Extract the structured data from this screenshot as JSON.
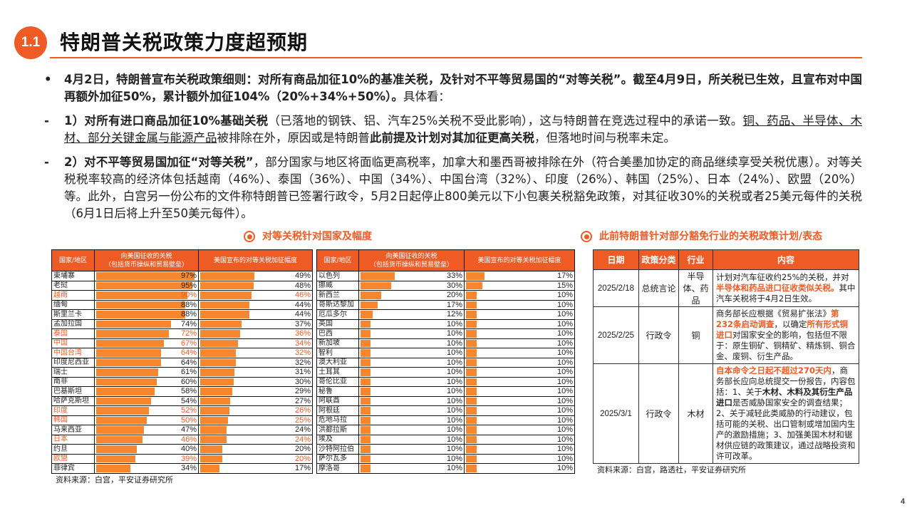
{
  "header": {
    "badge": "1.1",
    "title": "特朗普关税政策力度超预期"
  },
  "paragraphs": [
    {
      "marker": "•",
      "segments": [
        {
          "t": "4月2日，特朗普宣布关税政策细则：对所有商品加征10%的基准关税，及针对不平等贸易国的“对等关税”。截至4月9日，所关税已生效，且宣布对中国再额外加征50%，累计额外加征104%（20%+34%+50%）。",
          "s": "b"
        },
        {
          "t": "具体看：",
          "s": ""
        }
      ]
    },
    {
      "marker": "-",
      "segments": [
        {
          "t": "1）对所有进口商品加征10%基础关税",
          "s": "b"
        },
        {
          "t": "（已落地的钢铁、铝、汽车25%关税不受此影响），这与特朗普在竞选过程中的承诺一致。",
          "s": ""
        },
        {
          "t": "铜、药品、半导体、木材、部分关键金属与能源产品",
          "s": "u"
        },
        {
          "t": "被排除在外，原因或是特朗普",
          "s": ""
        },
        {
          "t": "此前提及计划对其加征更高关税",
          "s": "b"
        },
        {
          "t": "，但落地时间与税率未定。",
          "s": ""
        }
      ]
    },
    {
      "marker": "-",
      "segments": [
        {
          "t": "2）对不平等贸易国加征“对等关税”",
          "s": "b"
        },
        {
          "t": "，部分国家与地区将面临更高税率，加拿大和墨西哥被排除在外（符合美墨加协定的商品继续享受关税优惠）。对等关税税率较高的经济体包括越南（46%）、泰国（36%）、中国（34%）、中国台湾（32%）、印度（26%）、韩国（25%）、日本（24%）、欧盟（20%）等。此外，白宫另一份公布的文件称特朗普已签署行政令，5月2日起停止800美元以下小包裹关税豁免政策，对其征收30%的关税或者25美元每件的关税（6月1日后将上升至50美元每件）。",
          "s": ""
        }
      ]
    }
  ],
  "sections": {
    "left": "对等关税针对国家及幅度",
    "right": "此前特朗普针对部分豁免行业的关税政策计划/表态"
  },
  "tariff_table": {
    "headers": [
      "国家/地区",
      "向美国征收的关税\n（包括货币操纵和贸易壁垒）",
      "美国宣布的对等关税加征幅度"
    ],
    "bar_color": "#F7872F",
    "highlight_color": "#EF5B25",
    "left": [
      [
        "柬埔寨",
        97,
        49,
        false
      ],
      [
        "老挝",
        95,
        48,
        false
      ],
      [
        "越南",
        90,
        46,
        true
      ],
      [
        "缅甸",
        88,
        44,
        false
      ],
      [
        "斯里兰卡",
        88,
        44,
        false
      ],
      [
        "孟加拉国",
        74,
        37,
        false
      ],
      [
        "泰国",
        72,
        36,
        true
      ],
      [
        "中国",
        67,
        34,
        true
      ],
      [
        "中国台湾",
        64,
        32,
        true
      ],
      [
        "印度尼西亚",
        64,
        32,
        false
      ],
      [
        "瑞士",
        61,
        31,
        false
      ],
      [
        "南非",
        60,
        30,
        false
      ],
      [
        "巴基斯坦",
        58,
        29,
        false
      ],
      [
        "哈萨克斯坦",
        54,
        27,
        false
      ],
      [
        "印度",
        52,
        26,
        true
      ],
      [
        "韩国",
        50,
        25,
        true
      ],
      [
        "马来西亚",
        47,
        24,
        false
      ],
      [
        "日本",
        46,
        24,
        true
      ],
      [
        "约旦",
        40,
        20,
        false
      ],
      [
        "欧盟",
        39,
        20,
        true
      ],
      [
        "菲律宾",
        34,
        17,
        false
      ]
    ],
    "right": [
      [
        "以色列",
        33,
        17,
        false
      ],
      [
        "挪威",
        30,
        15,
        false
      ],
      [
        "新西兰",
        20,
        10,
        false
      ],
      [
        "哥斯达黎加",
        17,
        10,
        false
      ],
      [
        "厄瓜多尔",
        12,
        10,
        false
      ],
      [
        "英国",
        10,
        10,
        false
      ],
      [
        "巴西",
        10,
        10,
        false
      ],
      [
        "新加坡",
        10,
        10,
        false
      ],
      [
        "智利",
        10,
        10,
        false
      ],
      [
        "澳大利亚",
        10,
        10,
        false
      ],
      [
        "土耳其",
        10,
        10,
        false
      ],
      [
        "哥伦比亚",
        10,
        10,
        false
      ],
      [
        "秘鲁",
        10,
        10,
        false
      ],
      [
        "阿联酋",
        10,
        10,
        false
      ],
      [
        "阿根廷",
        10,
        10,
        false
      ],
      [
        "危地马拉",
        10,
        10,
        false
      ],
      [
        "洪都拉斯",
        10,
        10,
        false
      ],
      [
        "埃及",
        10,
        10,
        false
      ],
      [
        "沙特阿拉伯",
        10,
        10,
        false
      ],
      [
        "萨尔瓦多",
        10,
        10,
        false
      ],
      [
        "摩洛哥",
        10,
        10,
        false
      ]
    ],
    "source": "资料来源：白宫，平安证券研究所"
  },
  "policy_table": {
    "headers": [
      "日期",
      "政策分类",
      "行业",
      "内容"
    ],
    "rows": [
      {
        "date": "2025/2/18",
        "type": "总统言论",
        "industry": "半导体、药品",
        "content": [
          {
            "t": "计划对汽车征收约25%的关税，并对",
            "s": ""
          },
          {
            "t": "半导体和药品进口征收类似关税。",
            "s": "r b"
          },
          {
            "t": "其中汽车关税将于4月2日生效。",
            "s": ""
          }
        ]
      },
      {
        "date": "2025/2/25",
        "type": "行政令",
        "industry": "铜",
        "content": [
          {
            "t": "商务部长应根据《贸易扩张法》",
            "s": ""
          },
          {
            "t": "第232条启动调查",
            "s": "r b"
          },
          {
            "t": "，以确定",
            "s": ""
          },
          {
            "t": "所有形式铜进口",
            "s": "r b"
          },
          {
            "t": "对国家安全的影响，包括但不限于：原生铜矿、铜精矿、精炼铜、铜合金、废铜、衍生产品。",
            "s": ""
          }
        ]
      },
      {
        "date": "2025/3/1",
        "type": "行政令",
        "industry": "木材",
        "content": [
          {
            "t": "自本命令之日起不超过270天内",
            "s": "r b"
          },
          {
            "t": "，商务部长应向总统提交一份报告，内容包括：1、关于",
            "s": ""
          },
          {
            "t": "木材、木料及其衍生产品进口",
            "s": "b"
          },
          {
            "t": "是否威胁国家安全的调查结果；2、关于减轻此类威胁的行动建议，包括可能的关税、出口管制或增加国内生产的激励措施；3、加强美国木材和锯材供应链的政策建议，通过战略投资和许可改革。",
            "s": ""
          }
        ]
      }
    ],
    "source": "资料来源：白宫，路透社，平安证券研究所"
  },
  "page_number": "4"
}
